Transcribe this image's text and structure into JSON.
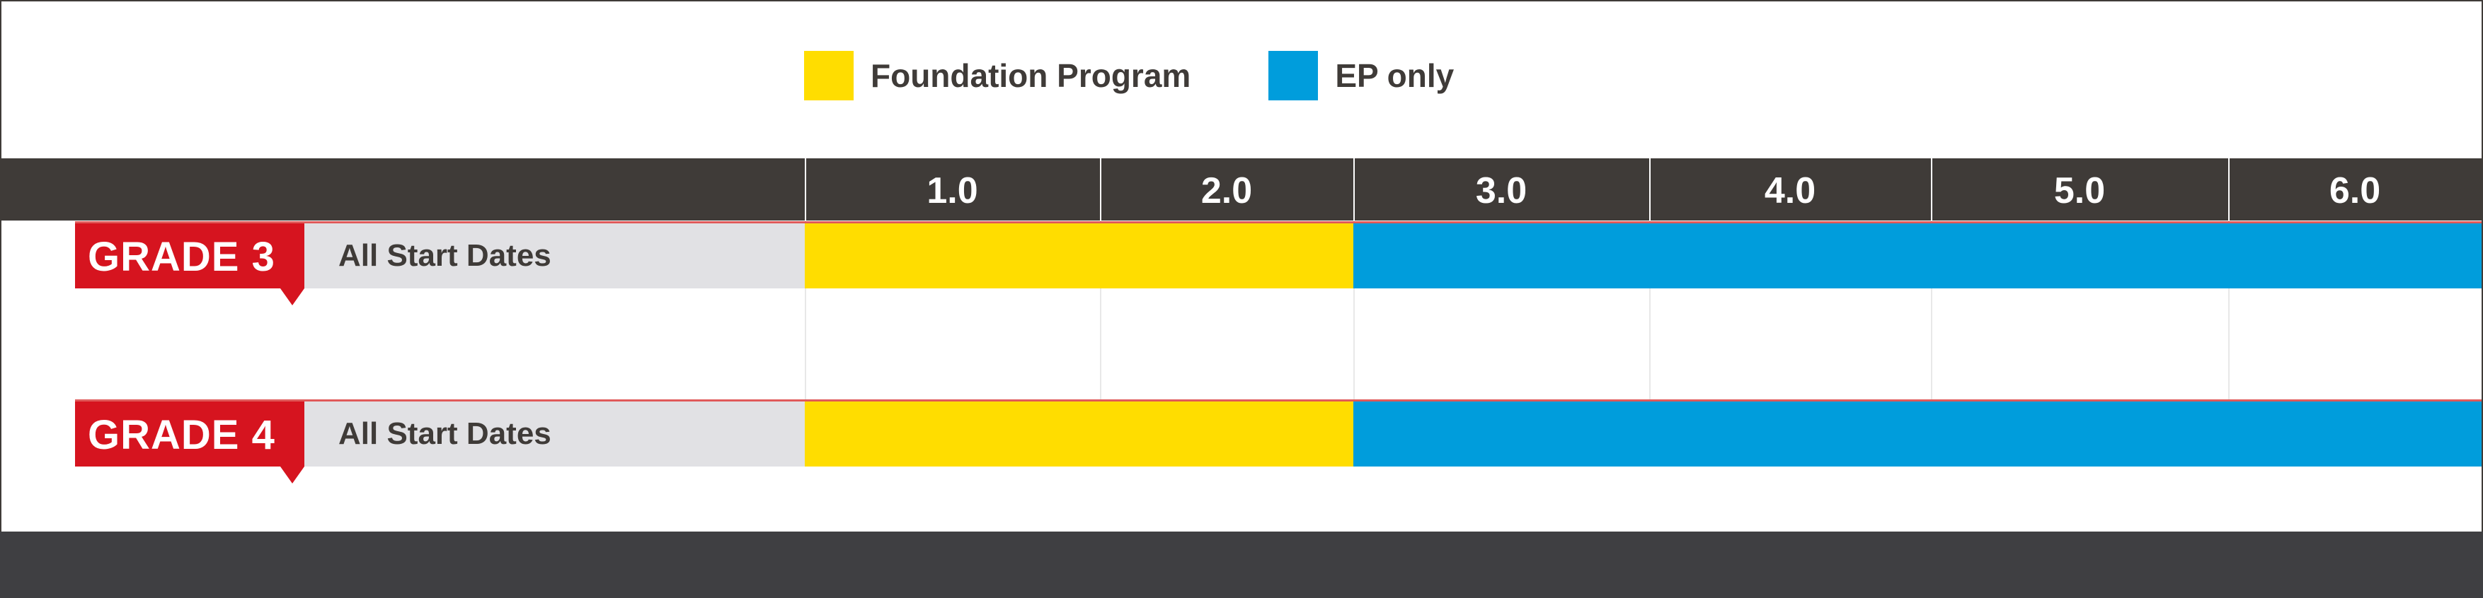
{
  "chart_data": {
    "type": "bar",
    "orientation": "horizontal",
    "stacked": true,
    "legend": {
      "placement": "top-center",
      "entries": [
        {
          "name": "Foundation Program",
          "color": "#ffdd00"
        },
        {
          "name": "EP only",
          "color": "#009ddc"
        }
      ]
    },
    "x_ticks": [
      "1.0",
      "2.0",
      "3.0",
      "4.0",
      "5.0",
      "6.0"
    ],
    "xlim": [
      0.5,
      6.5
    ],
    "rows": [
      {
        "grade": "GRADE 3",
        "sublabel": "All Start Dates",
        "segments": [
          {
            "series": "Foundation Program",
            "start": 0.5,
            "end": 2.4
          },
          {
            "series": "EP only",
            "start": 2.4,
            "end": 6.5
          }
        ]
      },
      {
        "grade": "GRADE 4",
        "sublabel": "All Start Dates",
        "segments": [
          {
            "series": "Foundation Program",
            "start": 0.5,
            "end": 2.4
          },
          {
            "series": "EP only",
            "start": 2.4,
            "end": 6.5
          }
        ]
      }
    ]
  },
  "colors": {
    "header": "#3f3b38",
    "grade_tag": "#d6141f",
    "label_bg": "#e1e1e4",
    "footer": "#3f3f42"
  }
}
